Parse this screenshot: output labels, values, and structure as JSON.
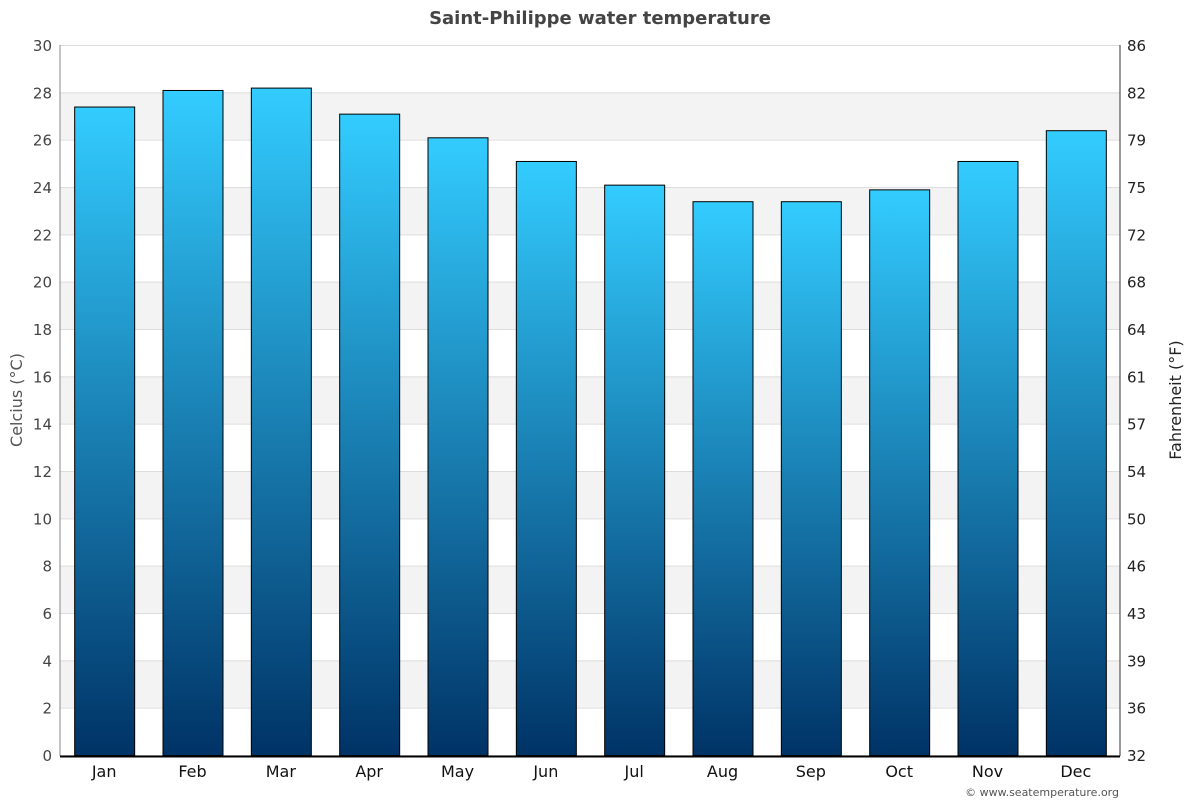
{
  "chart_data": {
    "type": "bar",
    "title": "Saint-Philippe water temperature",
    "ylabel": "Celcius (°C)",
    "ylabel_right": "Fahrenheit (°F)",
    "categories": [
      "Jan",
      "Feb",
      "Mar",
      "Apr",
      "May",
      "Jun",
      "Jul",
      "Aug",
      "Sep",
      "Oct",
      "Nov",
      "Dec"
    ],
    "values": [
      27.4,
      28.1,
      28.2,
      27.1,
      26.1,
      25.1,
      24.1,
      23.4,
      23.4,
      23.9,
      25.1,
      26.4
    ],
    "ylim": [
      0,
      30
    ],
    "yticks": [
      0,
      2,
      4,
      6,
      8,
      10,
      12,
      14,
      16,
      18,
      20,
      22,
      24,
      26,
      28,
      30
    ],
    "yticks_right": [
      "32",
      "36",
      "39",
      "43",
      "46",
      "50",
      "54",
      "57",
      "61",
      "64",
      "68",
      "72",
      "75",
      "79",
      "82",
      "86"
    ],
    "grid": true,
    "colors": {
      "bar_top": "#33ccff",
      "bar_bottom": "#003366",
      "band": "#f3f3f3"
    }
  },
  "credit": "© www.seatemperature.org"
}
